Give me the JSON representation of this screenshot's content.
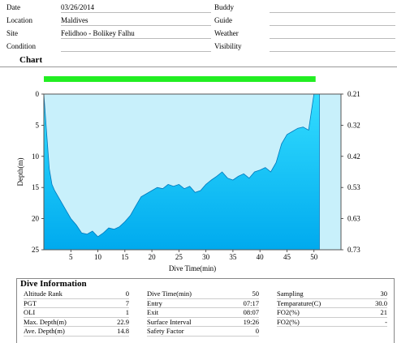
{
  "header": {
    "left": [
      {
        "label": "Date",
        "value": "03/26/2014"
      },
      {
        "label": "Location",
        "value": "Maldives"
      },
      {
        "label": "Site",
        "value": "Felidhoo - Bolikey Falhu"
      },
      {
        "label": "Condition",
        "value": ""
      }
    ],
    "right": [
      {
        "label": "Buddy",
        "value": ""
      },
      {
        "label": "Guide",
        "value": ""
      },
      {
        "label": "Weather",
        "value": ""
      },
      {
        "label": "Visibility",
        "value": ""
      }
    ]
  },
  "chart_section": {
    "title": "Chart"
  },
  "chart_data": {
    "type": "area",
    "xlabel": "Dive Time(min)",
    "ylabel": "Depth(m)",
    "xlim": [
      0,
      55
    ],
    "ylim": [
      0,
      25
    ],
    "y_inverted": true,
    "x_ticks": [
      "5",
      "10",
      "15",
      "20",
      "25",
      "30",
      "35",
      "40",
      "45",
      "50"
    ],
    "y_ticks": [
      "0",
      "5",
      "10",
      "15",
      "20",
      "25"
    ],
    "right_axis_ticks": [
      "0.21",
      "0.32",
      "0.42",
      "0.53",
      "0.63",
      "0.73"
    ],
    "x": [
      0,
      0.5,
      1,
      1.5,
      2,
      3,
      4,
      5,
      6,
      7,
      8,
      9,
      10,
      11,
      12,
      13,
      14,
      15,
      16,
      17,
      18,
      19,
      20,
      21,
      22,
      23,
      24,
      25,
      26,
      27,
      28,
      29,
      30,
      31,
      32,
      33,
      34,
      35,
      36,
      37,
      38,
      39,
      40,
      41,
      42,
      43,
      44,
      45,
      46,
      47,
      48,
      49,
      50,
      51
    ],
    "y": [
      0,
      6,
      12,
      14.5,
      15.5,
      17,
      18.5,
      20,
      21,
      22.3,
      22.5,
      22,
      22.9,
      22.3,
      21.5,
      21.7,
      21.3,
      20.5,
      19.5,
      18,
      16.5,
      16,
      15.5,
      15,
      15.2,
      14.5,
      14.8,
      14.5,
      15.2,
      14.8,
      15.8,
      15.5,
      14.5,
      13.8,
      13.2,
      12.5,
      13.5,
      13.8,
      13.2,
      12.8,
      13.5,
      12.5,
      12.2,
      11.8,
      12.5,
      11,
      8,
      6.5,
      6,
      5.5,
      5.3,
      5.8,
      0,
      0
    ],
    "area_color": "#00aaee",
    "area_top_color": "#33ddff",
    "background_color": "#c8f0fb",
    "bar_color": "#22ee22"
  },
  "dive_info": {
    "title": "Dive Information",
    "col1": [
      {
        "label": "Altitude Rank",
        "value": "0"
      },
      {
        "label": "PGT",
        "value": "7"
      },
      {
        "label": "OLI",
        "value": "1"
      },
      {
        "label": "Max. Depth(m)",
        "value": "22.9"
      },
      {
        "label": "Ave. Depth(m)",
        "value": "14.8"
      }
    ],
    "col2": [
      {
        "label": "Dive Time(min)",
        "value": "50"
      },
      {
        "label": "Entry",
        "value": "07:17"
      },
      {
        "label": "Exit",
        "value": "08:07"
      },
      {
        "label": "Surface Interval",
        "value": "19:26"
      },
      {
        "label": "Safety Factor",
        "value": "0"
      }
    ],
    "col3": [
      {
        "label": "Sampling",
        "value": "30"
      },
      {
        "label": "Temparature(C)",
        "value": "30.0"
      },
      {
        "label": "FO2(%)",
        "value": "21"
      },
      {
        "label": "FO2(%)",
        "value": "-"
      }
    ]
  }
}
